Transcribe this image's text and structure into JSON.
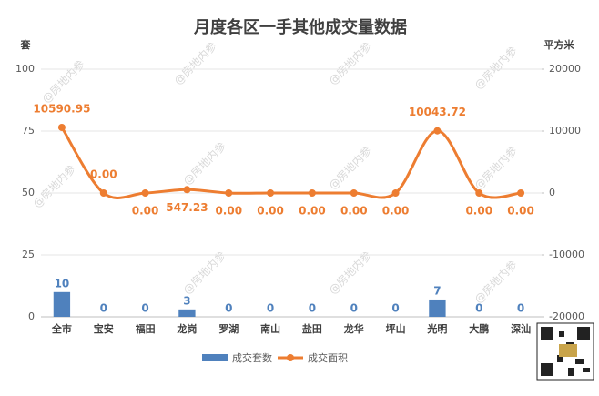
{
  "chart_data": {
    "type": "bar-line",
    "title": "月度各区一手其他成交量数据",
    "y_label": "套",
    "y2_label": "平方米",
    "watermark": "@房地内参",
    "categories": [
      "全市",
      "宝安",
      "福田",
      "龙岗",
      "罗湖",
      "南山",
      "盐田",
      "龙华",
      "坪山",
      "光明",
      "大鹏",
      "深汕"
    ],
    "series": [
      {
        "name": "成交套数",
        "type": "bar",
        "color": "#4f81bd",
        "values": [
          10,
          0,
          0,
          3,
          0,
          0,
          0,
          0,
          0,
          7,
          0,
          0
        ]
      },
      {
        "name": "成交面积",
        "type": "line",
        "axis": "y2",
        "color": "#ed7d31",
        "values": [
          10590.95,
          0,
          0,
          547.23,
          0,
          0,
          0,
          0,
          0,
          10043.72,
          0,
          0
        ],
        "value_labels": [
          "10590.95",
          "0.00",
          "0.00",
          "547.23",
          "0.00",
          "0.00",
          "0.00",
          "0.00",
          "0.00",
          "10043.72",
          "0.00",
          "0.00"
        ]
      }
    ],
    "ylim": [
      0,
      100
    ],
    "yticks": [
      0,
      25,
      50,
      75,
      100
    ],
    "y2lim": [
      -20000,
      20000
    ],
    "y2ticks": [
      -20000,
      -10000,
      0,
      10000,
      20000
    ],
    "grid": true
  }
}
